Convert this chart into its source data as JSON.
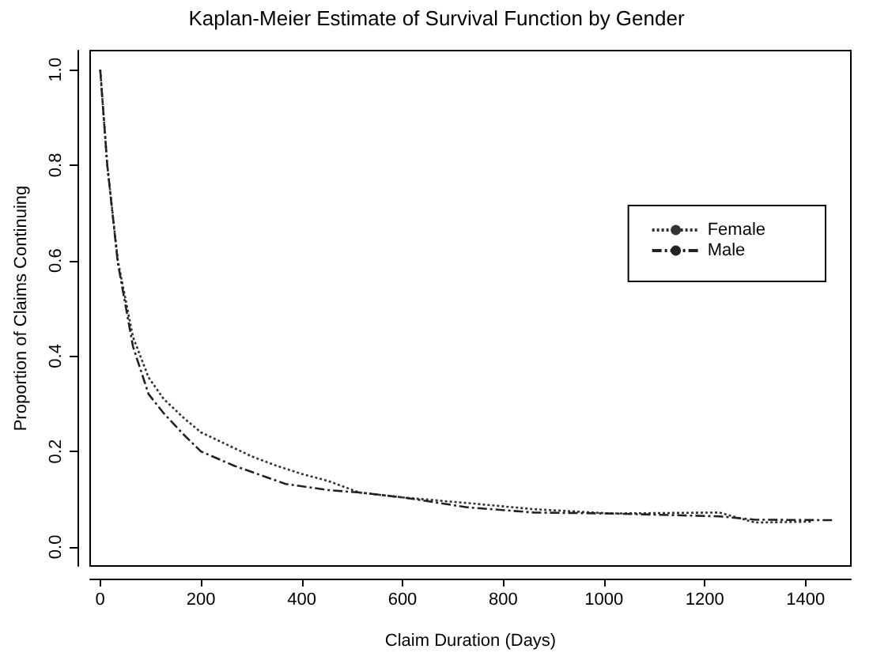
{
  "chart_data": {
    "type": "line",
    "title": "Kaplan-Meier Estimate of Survival Function by Gender",
    "xlabel": "Claim Duration (Days)",
    "ylabel": "Proportion of Claims Continuing",
    "xlim": [
      -20,
      1490
    ],
    "xticks": [
      0,
      200,
      400,
      600,
      800,
      1000,
      1200,
      1400
    ],
    "ylim": [
      -0.04,
      1.04
    ],
    "yticks": [
      {
        "value": 0,
        "label": "0.0"
      },
      0.2,
      0.4,
      0.6,
      0.8,
      {
        "value": 1,
        "label": "1.0"
      }
    ],
    "grid": false,
    "legend": "right",
    "marker": "none",
    "series": [
      {
        "name": "Female",
        "color": "#333333",
        "line_style": "dotted",
        "x": [
          0,
          14,
          35,
          65,
          96,
          126,
          166,
          200,
          250,
          300,
          350,
          400,
          453,
          514,
          606,
          728,
          861,
          1014,
          1229,
          1300,
          1412
        ],
        "values": [
          1.0,
          0.8,
          0.6,
          0.44,
          0.355,
          0.31,
          0.27,
          0.24,
          0.215,
          0.19,
          0.17,
          0.153,
          0.138,
          0.114,
          0.103,
          0.092,
          0.079,
          0.07,
          0.072,
          0.051,
          0.053
        ]
      },
      {
        "name": "Male",
        "color": "#222222",
        "line_style": "dashed",
        "x": [
          0,
          14,
          35,
          65,
          96,
          126,
          166,
          200,
          266,
          368,
          453,
          514,
          606,
          728,
          861,
          1014,
          1229,
          1300,
          1458
        ],
        "values": [
          1.0,
          0.8,
          0.595,
          0.42,
          0.32,
          0.28,
          0.235,
          0.2,
          0.17,
          0.132,
          0.119,
          0.114,
          0.103,
          0.083,
          0.072,
          0.07,
          0.064,
          0.057,
          0.056
        ]
      }
    ]
  }
}
